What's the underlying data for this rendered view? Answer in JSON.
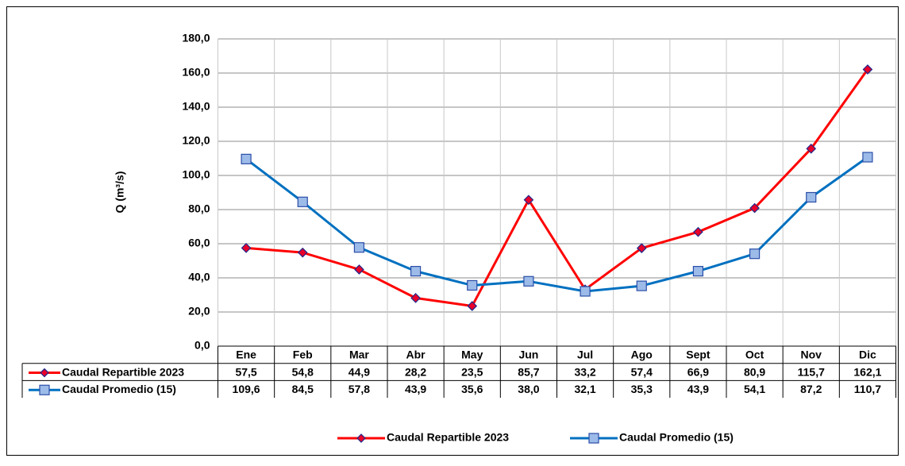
{
  "chart_data": {
    "type": "line",
    "y_label": "Q (m³/s)",
    "categories": [
      "Ene",
      "Feb",
      "Mar",
      "Abr",
      "May",
      "Jun",
      "Jul",
      "Ago",
      "Sept",
      "Oct",
      "Nov",
      "Dic"
    ],
    "series": [
      {
        "name": "Caudal Repartible 2023",
        "color": "#ff0000",
        "marker": "diamond",
        "marker_fill": "#e8002a",
        "marker_edge": "#1f2a8c",
        "values": [
          57.5,
          54.8,
          44.9,
          28.2,
          23.5,
          85.7,
          33.2,
          57.4,
          66.9,
          80.9,
          115.7,
          162.1
        ],
        "value_labels": [
          "57,5",
          "54,8",
          "44,9",
          "28,2",
          "23,5",
          "85,7",
          "33,2",
          "57,4",
          "66,9",
          "80,9",
          "115,7",
          "162,1"
        ]
      },
      {
        "name": "Caudal Promedio (15)",
        "color": "#0070c0",
        "marker": "square",
        "marker_fill": "#9dbbe8",
        "marker_edge": "#2a4ea8",
        "values": [
          109.6,
          84.5,
          57.8,
          43.9,
          35.6,
          38.0,
          32.1,
          35.3,
          43.9,
          54.1,
          87.2,
          110.7
        ],
        "value_labels": [
          "109,6",
          "84,5",
          "57,8",
          "43,9",
          "35,6",
          "38,0",
          "32,1",
          "35,3",
          "43,9",
          "54,1",
          "87,2",
          "110,7"
        ]
      }
    ],
    "ylim": [
      0,
      180
    ],
    "yticks": [
      {
        "value": 0,
        "label": "0,0"
      },
      {
        "value": 20,
        "label": "20,0"
      },
      {
        "value": 40,
        "label": "40,0"
      },
      {
        "value": 60,
        "label": "60,0"
      },
      {
        "value": 80,
        "label": "80,0"
      },
      {
        "value": 100,
        "label": "100,0"
      },
      {
        "value": 120,
        "label": "120,0"
      },
      {
        "value": 140,
        "label": "140,0"
      },
      {
        "value": 160,
        "label": "160,0"
      },
      {
        "value": 180,
        "label": "180,0"
      }
    ],
    "grid": true,
    "legend": "bottom"
  }
}
